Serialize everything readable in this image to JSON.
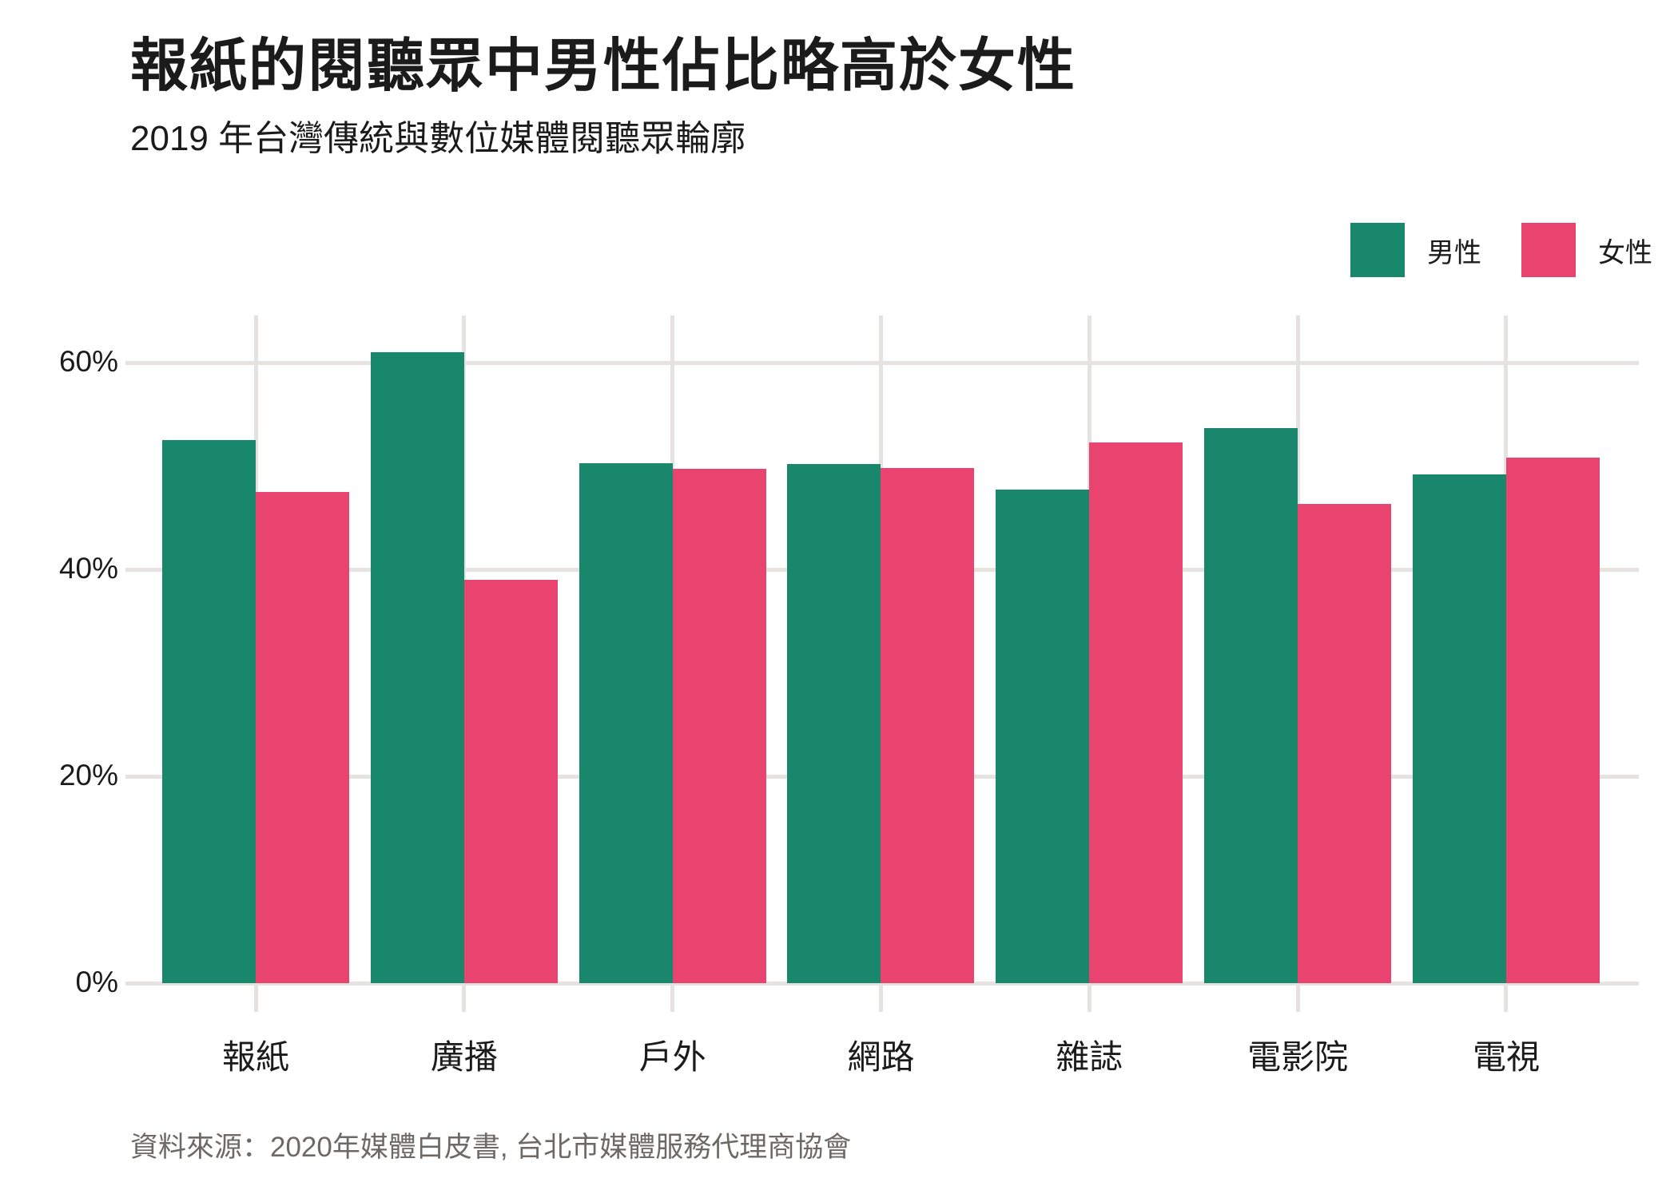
{
  "chart_data": {
    "type": "bar",
    "title": "報紙的閱聽眾中男性佔比略高於女性",
    "subtitle": "2019 年台灣傳統與數位媒體閱聽眾輪廓",
    "categories": [
      "報紙",
      "廣播",
      "戶外",
      "網路",
      "雜誌",
      "電影院",
      "電視"
    ],
    "series": [
      {
        "name": "男性",
        "key": "male",
        "color": "#18876b",
        "values": [
          52.5,
          61.0,
          50.3,
          50.2,
          47.7,
          53.7,
          49.2
        ]
      },
      {
        "name": "女性",
        "key": "female",
        "color": "#e9446f",
        "values": [
          47.5,
          39.0,
          49.7,
          49.8,
          52.3,
          46.3,
          50.8
        ]
      }
    ],
    "xlabel": "",
    "ylabel": "",
    "y_ticks": [
      "0%",
      "20%",
      "40%",
      "60%"
    ],
    "y_tick_values": [
      0,
      20,
      40,
      60
    ],
    "ylim": [
      0,
      65
    ],
    "grid": true,
    "legend_position": "top-right",
    "unit": "%"
  },
  "colors": {
    "male": "#18876b",
    "female": "#e9446f",
    "gridline": "#e6e2df",
    "text": "#1b1b1b",
    "source_text": "#6e6964"
  },
  "source": {
    "text": "資料來源：2020年媒體白皮書, 台北市媒體服務代理商協會"
  }
}
